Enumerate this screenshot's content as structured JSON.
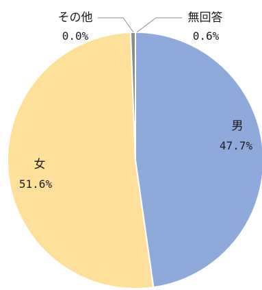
{
  "chart_data": {
    "type": "pie",
    "title": "",
    "slices": [
      {
        "label": "男",
        "value": 47.7,
        "value_label": "47.7%",
        "color": "#8eaadb"
      },
      {
        "label": "女",
        "value": 51.6,
        "value_label": "51.6%",
        "color": "#ffe09a"
      },
      {
        "label": "その他",
        "value": 0.0,
        "value_label": "0.0%",
        "color": "#bfbfbf"
      },
      {
        "label": "無回答",
        "value": 0.6,
        "value_label": "0.6%",
        "color": "#8c8c8c"
      }
    ],
    "start_angle": "12 o'clock",
    "direction": "clockwise",
    "legend": "none",
    "slice_border_color": "#ffffff"
  }
}
